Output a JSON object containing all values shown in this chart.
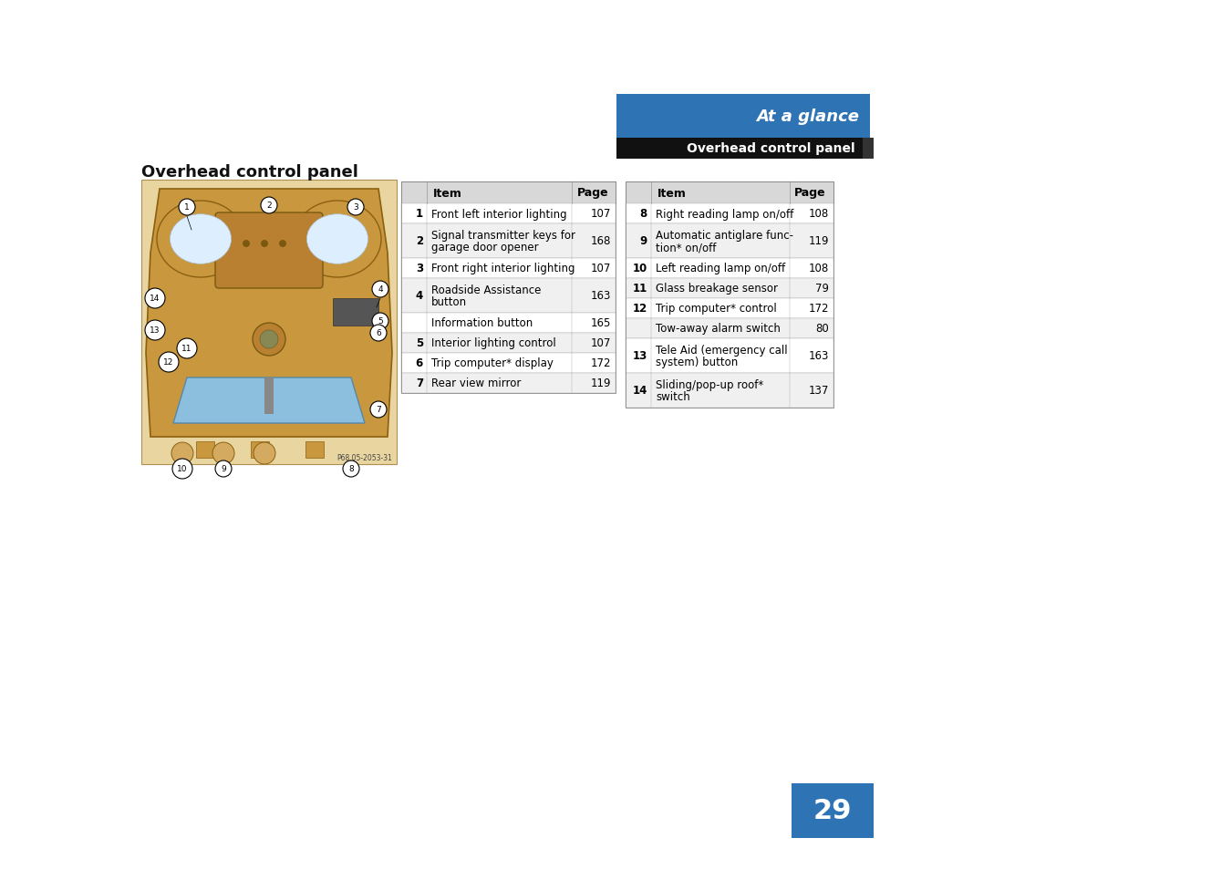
{
  "page_bg": "#ffffff",
  "blue_color": "#2E74B5",
  "black_color": "#000000",
  "header_text1": "At a glance",
  "header_text2": "Overhead control panel",
  "page_title": "Overhead control panel",
  "page_number": "29",
  "left_table": {
    "rows": [
      [
        "1",
        "Front left interior lighting",
        "107"
      ],
      [
        "2",
        "Signal transmitter keys for\ngarage door opener",
        "168"
      ],
      [
        "3",
        "Front right interior lighting",
        "107"
      ],
      [
        "4",
        "Roadside Assistance\nbutton",
        "163"
      ],
      [
        "",
        "Information button",
        "165"
      ],
      [
        "5",
        "Interior lighting control",
        "107"
      ],
      [
        "6",
        "Trip computer* display",
        "172"
      ],
      [
        "7",
        "Rear view mirror",
        "119"
      ]
    ]
  },
  "right_table": {
    "rows": [
      [
        "8",
        "Right reading lamp on/off",
        "108"
      ],
      [
        "9",
        "Automatic antiglare func-\ntion* on/off",
        "119"
      ],
      [
        "10",
        "Left reading lamp on/off",
        "108"
      ],
      [
        "11",
        "Glass breakage sensor",
        "79"
      ],
      [
        "12",
        "Trip computer* control",
        "172"
      ],
      [
        "",
        "Tow-away alarm switch",
        "80"
      ],
      [
        "13",
        "Tele Aid (emergency call\nsystem) button",
        "163"
      ],
      [
        "14",
        "Sliding/pop-up roof*\nswitch",
        "137"
      ]
    ]
  },
  "img_credit": "P68.05-2053-31"
}
